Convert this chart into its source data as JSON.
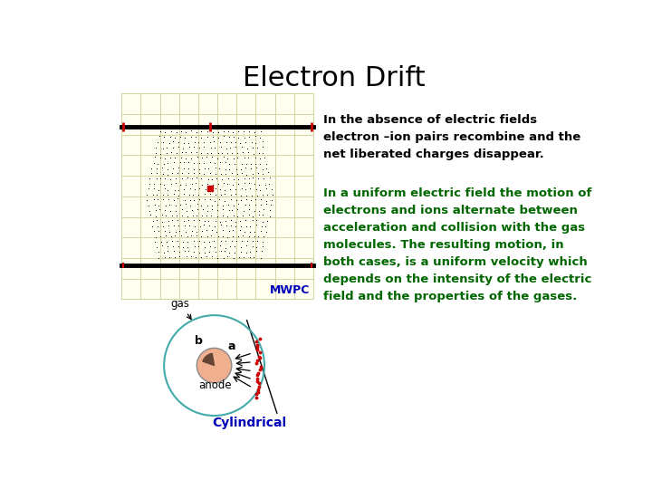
{
  "title": "Electron Drift",
  "title_fontsize": 22,
  "bg_color": "#ffffff",
  "text1": "In the absence of electric fields\nelectron –ion pairs recombine and the\nnet liberated charges disappear.",
  "text1_color": "#000000",
  "text1_fontsize": 9.5,
  "text2": "In a uniform electric field the motion of\nelectrons and ions alternate between\nacceleration and collision with the gas\nmolecules. The resulting motion, in\nboth cases, is a uniform velocity which\ndepends on the intensity of the electric\nfield and the properties of the gases.",
  "text2_color": "#006600",
  "text2_fontsize": 9.5,
  "mwpc_label": "MWPC",
  "mwpc_label_color": "#0000bb",
  "mwpc_label_fontsize": 9,
  "cylindrical_label": "Cylindrical",
  "cylindrical_label_color": "#0000bb",
  "cylindrical_label_fontsize": 10,
  "mwpc_bg": "#fffff0",
  "grid_color": "#d4d4a0",
  "dot_color": "#111111",
  "red_color": "#cc0000",
  "anode_label": "anode",
  "gas_label": "gas",
  "b_label": "b",
  "a_label": "a",
  "outer_circle_color": "#44aaaa",
  "inner_circle_color": "#f0b090"
}
